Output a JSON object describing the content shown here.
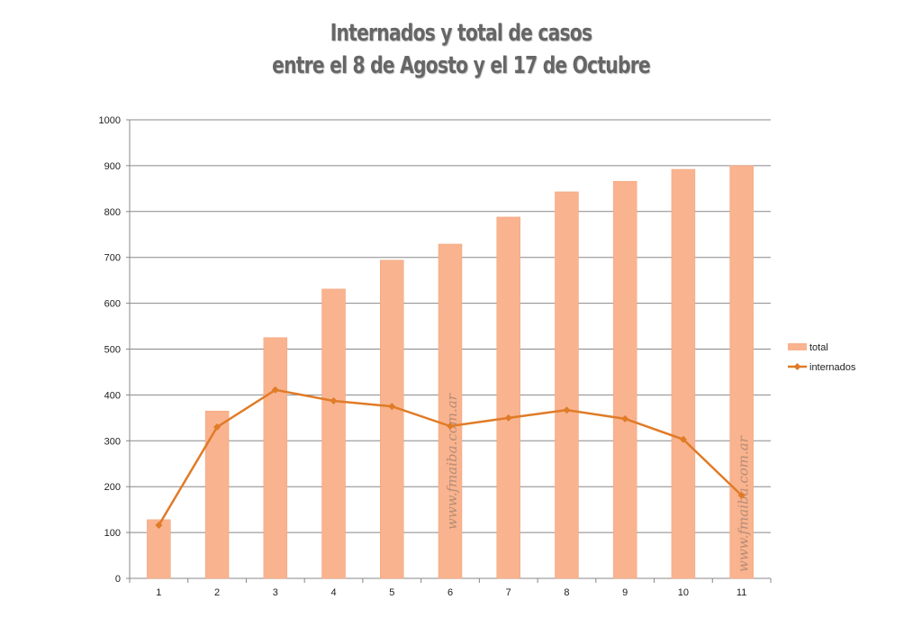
{
  "chart_data": {
    "type": "bar",
    "title": [
      "Internados y total de casos",
      "entre el 8 de Agosto y el 17 de Octubre"
    ],
    "xlabel": "",
    "ylabel": "",
    "categories": [
      "1",
      "2",
      "3",
      "4",
      "5",
      "6",
      "7",
      "8",
      "9",
      "10",
      "11"
    ],
    "ylim": [
      0,
      1000
    ],
    "yticks": [
      0,
      100,
      200,
      300,
      400,
      500,
      600,
      700,
      800,
      900,
      1000
    ],
    "grid": true,
    "legend_position": "right",
    "series": [
      {
        "name": "total",
        "type": "bar",
        "color": "#f9b38e",
        "values": [
          128,
          365,
          525,
          631,
          694,
          729,
          788,
          843,
          866,
          892,
          900
        ]
      },
      {
        "name": "internados",
        "type": "line",
        "color": "#e07b27",
        "values": [
          116,
          330,
          411,
          387,
          375,
          332,
          350,
          367,
          348,
          303,
          181
        ]
      }
    ],
    "watermarks": [
      "www.fmaiba.com.ar",
      "www.fmaiba.com.ar"
    ]
  }
}
